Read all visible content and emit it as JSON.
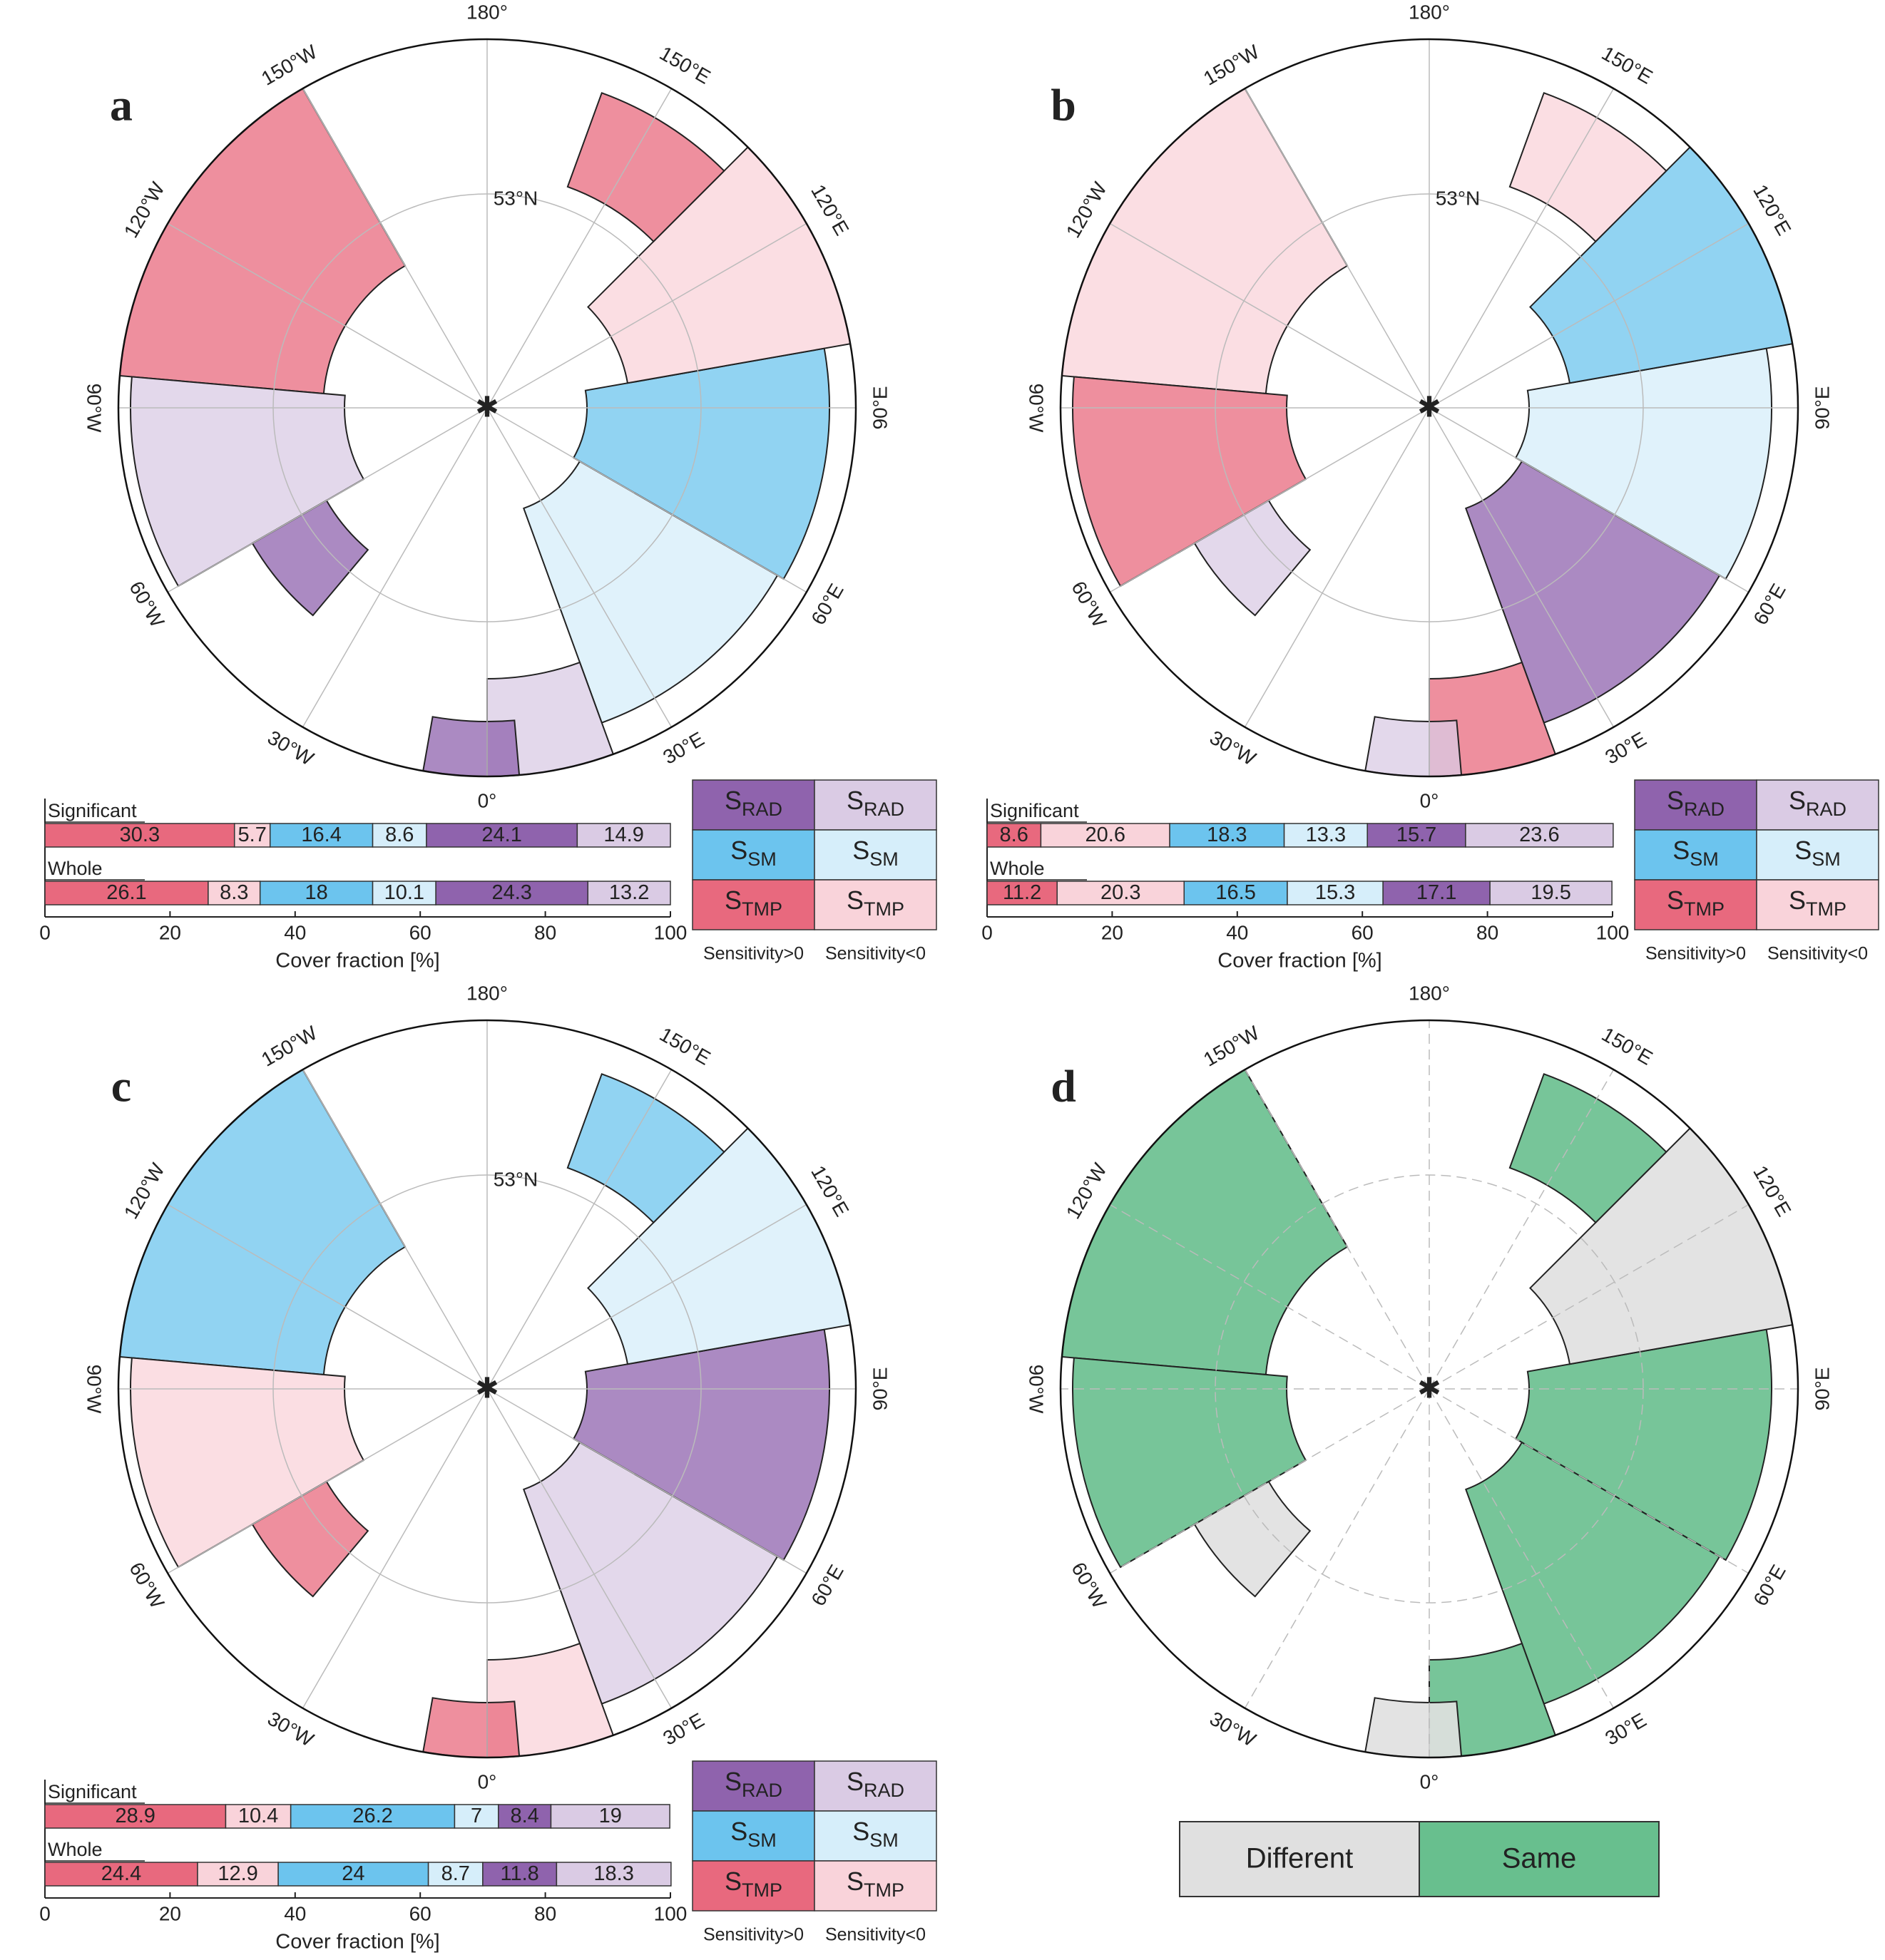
{
  "panels": [
    {
      "letter": "a",
      "map_labels": [
        "0°",
        "30°E",
        "60°E",
        "90°E",
        "120°E",
        "150°E",
        "180°",
        "150°W",
        "120°W",
        "90°W",
        "60°W",
        "30°W"
      ],
      "parallel_label": "53°N"
    },
    {
      "letter": "b",
      "map_labels": [
        "0°",
        "30°E",
        "60°E",
        "90°E",
        "120°E",
        "150°E",
        "180°",
        "150°W",
        "120°W",
        "90°W",
        "60°W",
        "30°W"
      ],
      "parallel_label": "53°N"
    },
    {
      "letter": "c",
      "map_labels": [
        "0°",
        "30°E",
        "60°E",
        "90°E",
        "120°E",
        "150°E",
        "180°",
        "150°W",
        "120°W",
        "90°W",
        "60°W",
        "30°W"
      ],
      "parallel_label": "53°N"
    },
    {
      "letter": "d",
      "map_labels": [
        "0°",
        "30°E",
        "60°E",
        "90°E",
        "120°E",
        "150°E",
        "180°",
        "150°W",
        "120°W",
        "90°W",
        "60°W",
        "30°W"
      ],
      "parallel_label": ""
    }
  ],
  "chart_data": [
    {
      "type": "stacked_barh",
      "categories": [
        "Significant",
        "Whole"
      ],
      "xlabel": "Cover fraction [%]",
      "xlim": [
        0,
        100
      ],
      "xticks": [
        0,
        20,
        40,
        60,
        80,
        100
      ],
      "series": [
        {
          "color": "#e8697e",
          "values": [
            30.3,
            26.1
          ]
        },
        {
          "color": "#f9d3da",
          "values": [
            5.7,
            8.3
          ]
        },
        {
          "color": "#6cc4ee",
          "values": [
            16.4,
            18
          ]
        },
        {
          "color": "#d6eefa",
          "values": [
            8.6,
            10.1
          ]
        },
        {
          "color": "#8f63ad",
          "values": [
            24.1,
            24.3
          ]
        },
        {
          "color": "#dacbe4",
          "values": [
            14.9,
            13.2
          ]
        }
      ],
      "legend": {
        "rows": [
          {
            "symbol": "S",
            "subscript": "RAD"
          },
          {
            "symbol": "S",
            "subscript": "SM"
          },
          {
            "symbol": "S",
            "subscript": "TMP"
          }
        ],
        "columns": [
          "Sensitivity>0",
          "Sensitivity<0"
        ]
      }
    },
    {
      "type": "stacked_barh",
      "categories": [
        "Significant",
        "Whole"
      ],
      "xlabel": "Cover fraction [%]",
      "xlim": [
        0,
        100
      ],
      "xticks": [
        0,
        20,
        40,
        60,
        80,
        100
      ],
      "series": [
        {
          "color": "#e8697e",
          "values": [
            8.6,
            11.2
          ]
        },
        {
          "color": "#f9d3da",
          "values": [
            20.6,
            20.3
          ]
        },
        {
          "color": "#6cc4ee",
          "values": [
            18.3,
            16.5
          ]
        },
        {
          "color": "#d6eefa",
          "values": [
            13.3,
            15.3
          ]
        },
        {
          "color": "#8f63ad",
          "values": [
            15.7,
            17.1
          ]
        },
        {
          "color": "#dacbe4",
          "values": [
            23.6,
            19.5
          ]
        }
      ],
      "legend": {
        "rows": [
          {
            "symbol": "S",
            "subscript": "RAD"
          },
          {
            "symbol": "S",
            "subscript": "SM"
          },
          {
            "symbol": "S",
            "subscript": "TMP"
          }
        ],
        "columns": [
          "Sensitivity>0",
          "Sensitivity<0"
        ]
      }
    },
    {
      "type": "stacked_barh",
      "categories": [
        "Significant",
        "Whole"
      ],
      "xlabel": "Cover fraction [%]",
      "xlim": [
        0,
        100
      ],
      "xticks": [
        0,
        20,
        40,
        60,
        80,
        100
      ],
      "series": [
        {
          "color": "#e8697e",
          "values": [
            28.9,
            24.4
          ]
        },
        {
          "color": "#f9d3da",
          "values": [
            10.4,
            12.9
          ]
        },
        {
          "color": "#6cc4ee",
          "values": [
            26.2,
            24
          ]
        },
        {
          "color": "#d6eefa",
          "values": [
            7,
            8.7
          ]
        },
        {
          "color": "#8f63ad",
          "values": [
            8.4,
            11.8
          ]
        },
        {
          "color": "#dacbe4",
          "values": [
            19,
            18.3
          ]
        }
      ],
      "legend": {
        "rows": [
          {
            "symbol": "S",
            "subscript": "RAD"
          },
          {
            "symbol": "S",
            "subscript": "SM"
          },
          {
            "symbol": "S",
            "subscript": "TMP"
          }
        ],
        "columns": [
          "Sensitivity>0",
          "Sensitivity<0"
        ]
      }
    }
  ],
  "agreement_legend": [
    {
      "label": "Different",
      "color": "#e0e0e0"
    },
    {
      "label": "Same",
      "color": "#68bf8e"
    }
  ]
}
